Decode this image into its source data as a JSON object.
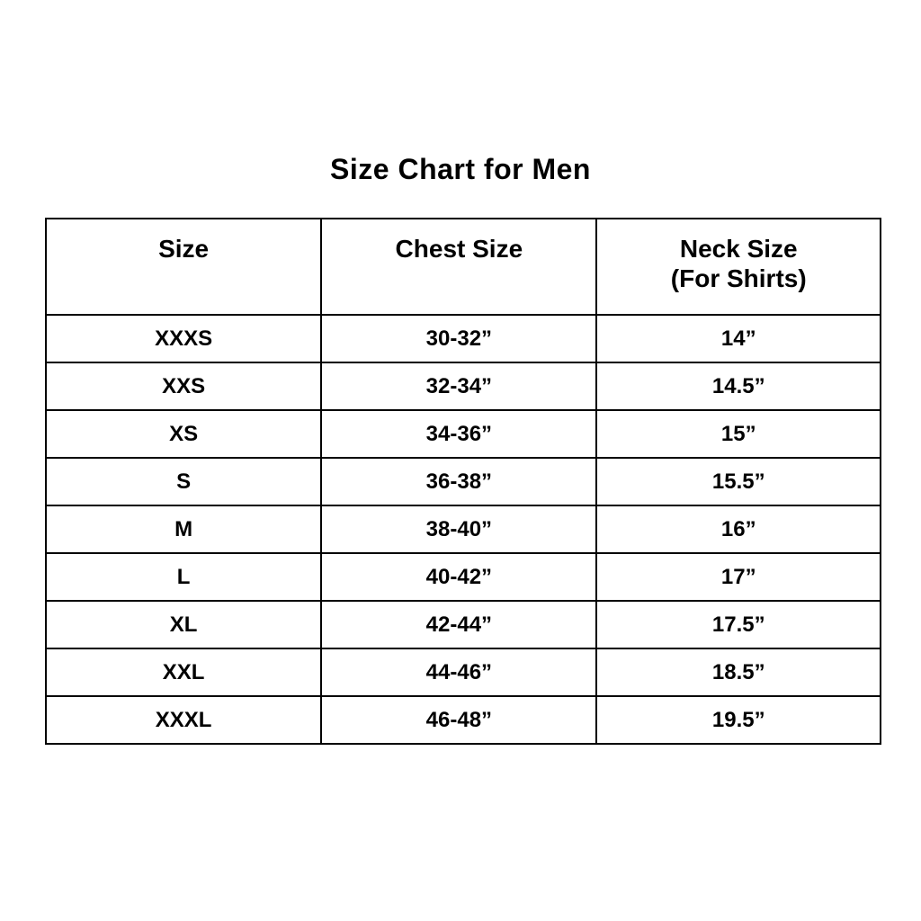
{
  "title": "Size Chart for Men",
  "table": {
    "headers": {
      "size": "Size",
      "chest": "Chest Size",
      "neck_line1": "Neck Size",
      "neck_line2": "(For Shirts)"
    },
    "rows": [
      [
        "XXXS",
        "30-32”",
        "14”"
      ],
      [
        "XXS",
        "32-34”",
        "14.5”"
      ],
      [
        "XS",
        "34-36”",
        "15”"
      ],
      [
        "S",
        "36-38”",
        "15.5”"
      ],
      [
        "M",
        "38-40”",
        "16”"
      ],
      [
        "L",
        "40-42”",
        "17”"
      ],
      [
        "XL",
        "42-44”",
        "17.5”"
      ],
      [
        "XXL",
        "44-46”",
        "18.5”"
      ],
      [
        "XXXL",
        "46-48”",
        "19.5”"
      ]
    ]
  },
  "chart_data": {
    "type": "table",
    "title": "Size Chart for Men",
    "columns": [
      "Size",
      "Chest Size",
      "Neck Size (For Shirts)"
    ],
    "rows": [
      {
        "size": "XXXS",
        "chest_size": "30-32\"",
        "neck_size": "14\""
      },
      {
        "size": "XXS",
        "chest_size": "32-34\"",
        "neck_size": "14.5\""
      },
      {
        "size": "XS",
        "chest_size": "34-36\"",
        "neck_size": "15\""
      },
      {
        "size": "S",
        "chest_size": "36-38\"",
        "neck_size": "15.5\""
      },
      {
        "size": "M",
        "chest_size": "38-40\"",
        "neck_size": "16\""
      },
      {
        "size": "L",
        "chest_size": "40-42\"",
        "neck_size": "17\""
      },
      {
        "size": "XL",
        "chest_size": "42-44\"",
        "neck_size": "17.5\""
      },
      {
        "size": "XXL",
        "chest_size": "44-46\"",
        "neck_size": "18.5\""
      },
      {
        "size": "XXXL",
        "chest_size": "46-48\"",
        "neck_size": "19.5\""
      }
    ],
    "layout": "three equal columns, header row taller with two-line third header, black grid borders on white background, all text bold and centered"
  },
  "colors": {
    "background": "#ffffff",
    "border": "#000000",
    "text": "#000000"
  }
}
